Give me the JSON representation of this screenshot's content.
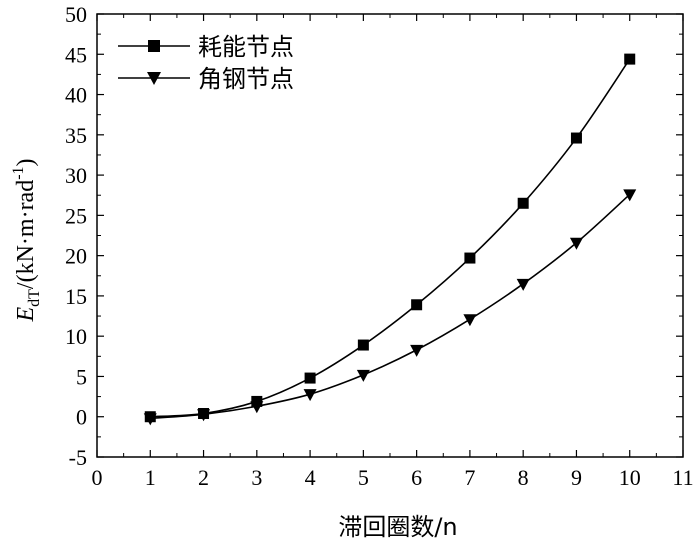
{
  "chart_data": {
    "type": "line",
    "xlabel": "滞回圈数/n",
    "ylabel": {
      "symbol": "E",
      "subscript": "dT",
      "unit": "/(kN·m·rad",
      "superscript": "-1",
      "close": ")"
    },
    "xlim": [
      0,
      11
    ],
    "ylim": [
      -5,
      50
    ],
    "xticks": [
      "0",
      "1",
      "2",
      "3",
      "4",
      "5",
      "6",
      "7",
      "8",
      "9",
      "10",
      "11"
    ],
    "yticks": [
      "-5",
      "0",
      "5",
      "10",
      "15",
      "20",
      "25",
      "30",
      "35",
      "40",
      "45",
      "50"
    ],
    "legend_position": "top-left",
    "series": [
      {
        "name": "耗能节点",
        "marker": "square",
        "x": [
          1,
          2,
          3,
          4,
          5,
          6,
          7,
          8,
          9,
          10
        ],
        "y": [
          0.0,
          0.4,
          1.9,
          4.8,
          8.9,
          13.9,
          19.7,
          26.5,
          34.6,
          44.4
        ]
      },
      {
        "name": "角钢节点",
        "marker": "triangle-down",
        "x": [
          1,
          2,
          3,
          4,
          5,
          6,
          7,
          8,
          9,
          10
        ],
        "y": [
          -0.2,
          0.3,
          1.3,
          2.8,
          5.2,
          8.3,
          12.1,
          16.5,
          21.6,
          27.6
        ]
      }
    ]
  }
}
